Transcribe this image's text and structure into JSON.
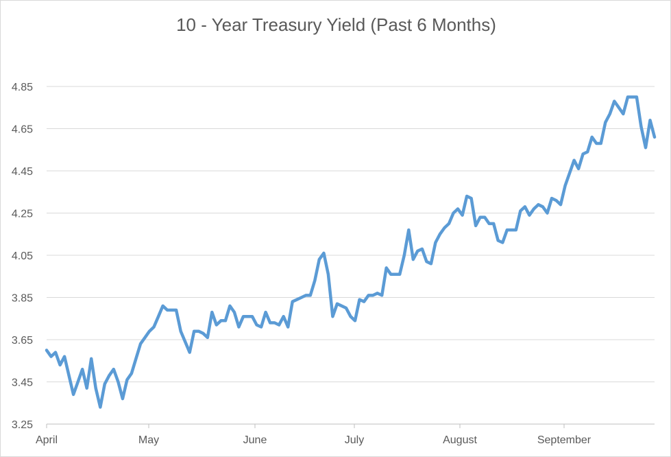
{
  "chart_data": {
    "type": "line",
    "title": "10 - Year Treasury Yield (Past 6 Months)",
    "xlabel": "",
    "ylabel": "",
    "ylim": [
      3.25,
      4.85
    ],
    "yticks": [
      "3.25",
      "3.45",
      "3.65",
      "3.85",
      "4.05",
      "4.25",
      "4.45",
      "4.65",
      "4.85"
    ],
    "xticks": [
      "April",
      "May",
      "June",
      "July",
      "August",
      "September"
    ],
    "grid": "horizontal",
    "legend": "none",
    "line_color": "#5b9bd5",
    "series": [
      {
        "values": [
          3.6,
          3.57,
          3.59,
          3.53,
          3.57,
          3.48,
          3.39,
          3.45,
          3.51,
          3.42,
          3.56,
          3.42,
          3.33,
          3.44,
          3.48,
          3.51,
          3.45,
          3.37,
          3.46,
          3.49,
          3.56,
          3.63,
          3.66,
          3.69,
          3.71,
          3.76,
          3.81,
          3.79,
          3.79,
          3.79,
          3.69,
          3.64,
          3.59,
          3.69,
          3.69,
          3.68,
          3.66,
          3.78,
          3.72,
          3.74,
          3.74,
          3.81,
          3.78,
          3.71,
          3.76,
          3.76,
          3.76,
          3.72,
          3.71,
          3.78,
          3.73,
          3.73,
          3.72,
          3.76,
          3.71,
          3.83,
          3.84,
          3.85,
          3.86,
          3.86,
          3.93,
          4.03,
          4.06,
          3.96,
          3.76,
          3.82,
          3.81,
          3.8,
          3.76,
          3.74,
          3.84,
          3.83,
          3.86,
          3.86,
          3.87,
          3.86,
          3.99,
          3.96,
          3.96,
          3.96,
          4.05,
          4.17,
          4.03,
          4.07,
          4.08,
          4.02,
          4.01,
          4.11,
          4.15,
          4.18,
          4.2,
          4.25,
          4.27,
          4.24,
          4.33,
          4.32,
          4.19,
          4.23,
          4.23,
          4.2,
          4.2,
          4.12,
          4.11,
          4.17,
          4.17,
          4.17,
          4.26,
          4.28,
          4.24,
          4.27,
          4.29,
          4.28,
          4.25,
          4.32,
          4.31,
          4.29,
          4.38,
          4.44,
          4.5,
          4.46,
          4.53,
          4.54,
          4.61,
          4.58,
          4.58,
          4.68,
          4.72,
          4.78,
          4.75,
          4.72,
          4.8,
          4.8,
          4.8,
          4.66,
          4.56,
          4.69,
          4.61
        ]
      }
    ]
  }
}
